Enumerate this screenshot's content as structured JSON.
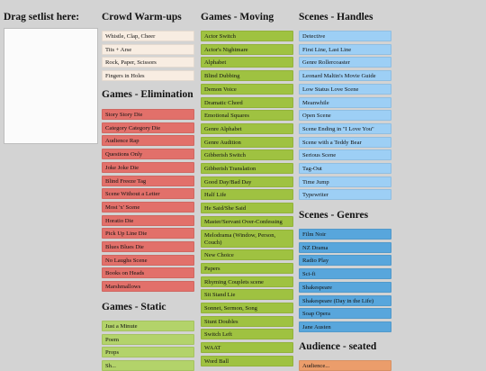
{
  "drop_zone": {
    "label": "Drag setlist here:"
  },
  "sections": {
    "crowd_warmups": {
      "title": "Crowd Warm-ups",
      "items": [
        "Whistle, Clap, Cheer",
        "Tits + Arse",
        "Rock, Paper, Scissors",
        "Fingers in Holes"
      ]
    },
    "games_elimination": {
      "title": "Games - Elimination",
      "items": [
        "Story Story Die",
        "Category Category Die",
        "Audience Rap",
        "Questions Only",
        "Joke Joke Die",
        "Blind Freeze Tag",
        "Scene Without a Letter",
        "Most 'x' Scene",
        "Horatio Die",
        "Pick Up Line Die",
        "Blues Blues Die",
        "No Laughs Scene",
        "Books on Heads",
        "Marshmallows"
      ]
    },
    "games_static": {
      "title": "Games - Static",
      "items": [
        "Just a Minute",
        "Poem",
        "Props",
        "Sh..."
      ]
    },
    "games_moving": {
      "title": "Games - Moving",
      "items": [
        "Actor Switch",
        "Actor's Nightmare",
        "Alphabet",
        "Blind Dubbing",
        "Demon Voice",
        "Dramatic Chord",
        "Emotional Squares",
        "Genre Alphabet",
        "Genre Audition",
        "Gibberish Switch",
        "Gibberish Translation",
        "Good Day/Bad Day",
        "Half Life",
        "He Said/She Said",
        "Master/Servant Over-Confessing",
        "Melodrama (Window, Person, Couch)",
        "New Choice",
        "Papers",
        "Rhyming Couplets scene",
        "Sit Stand Lie",
        "Sonnet, Sermon, Song",
        "Stunt Doubles",
        "Switch Left",
        "WAAT",
        "Word Ball"
      ]
    },
    "scenes_handles": {
      "title": "Scenes - Handles",
      "items": [
        "Detective",
        "First Line, Last Line",
        "Genre Rollercoaster",
        "Leonard Maltin's Movie Guide",
        "Low Status Love Scene",
        "Meanwhile",
        "Open Scene",
        "Scene Ending in \"I Love You\"",
        "Scene with a Teddy Bear",
        "Serious Scene",
        "Tag-Out",
        "Time Jump",
        "Typewriter"
      ]
    },
    "scenes_genres": {
      "title": "Scenes - Genres",
      "items": [
        "Film Noir",
        "NZ Drama",
        "Radio Play",
        "Sci-fi",
        "Shakespeare",
        "Shakespeare (Day in the Life)",
        "Soap Opera",
        "Jane Austen"
      ]
    },
    "audience_seated": {
      "title": "Audience - seated",
      "items": [
        "Audience..."
      ]
    }
  }
}
